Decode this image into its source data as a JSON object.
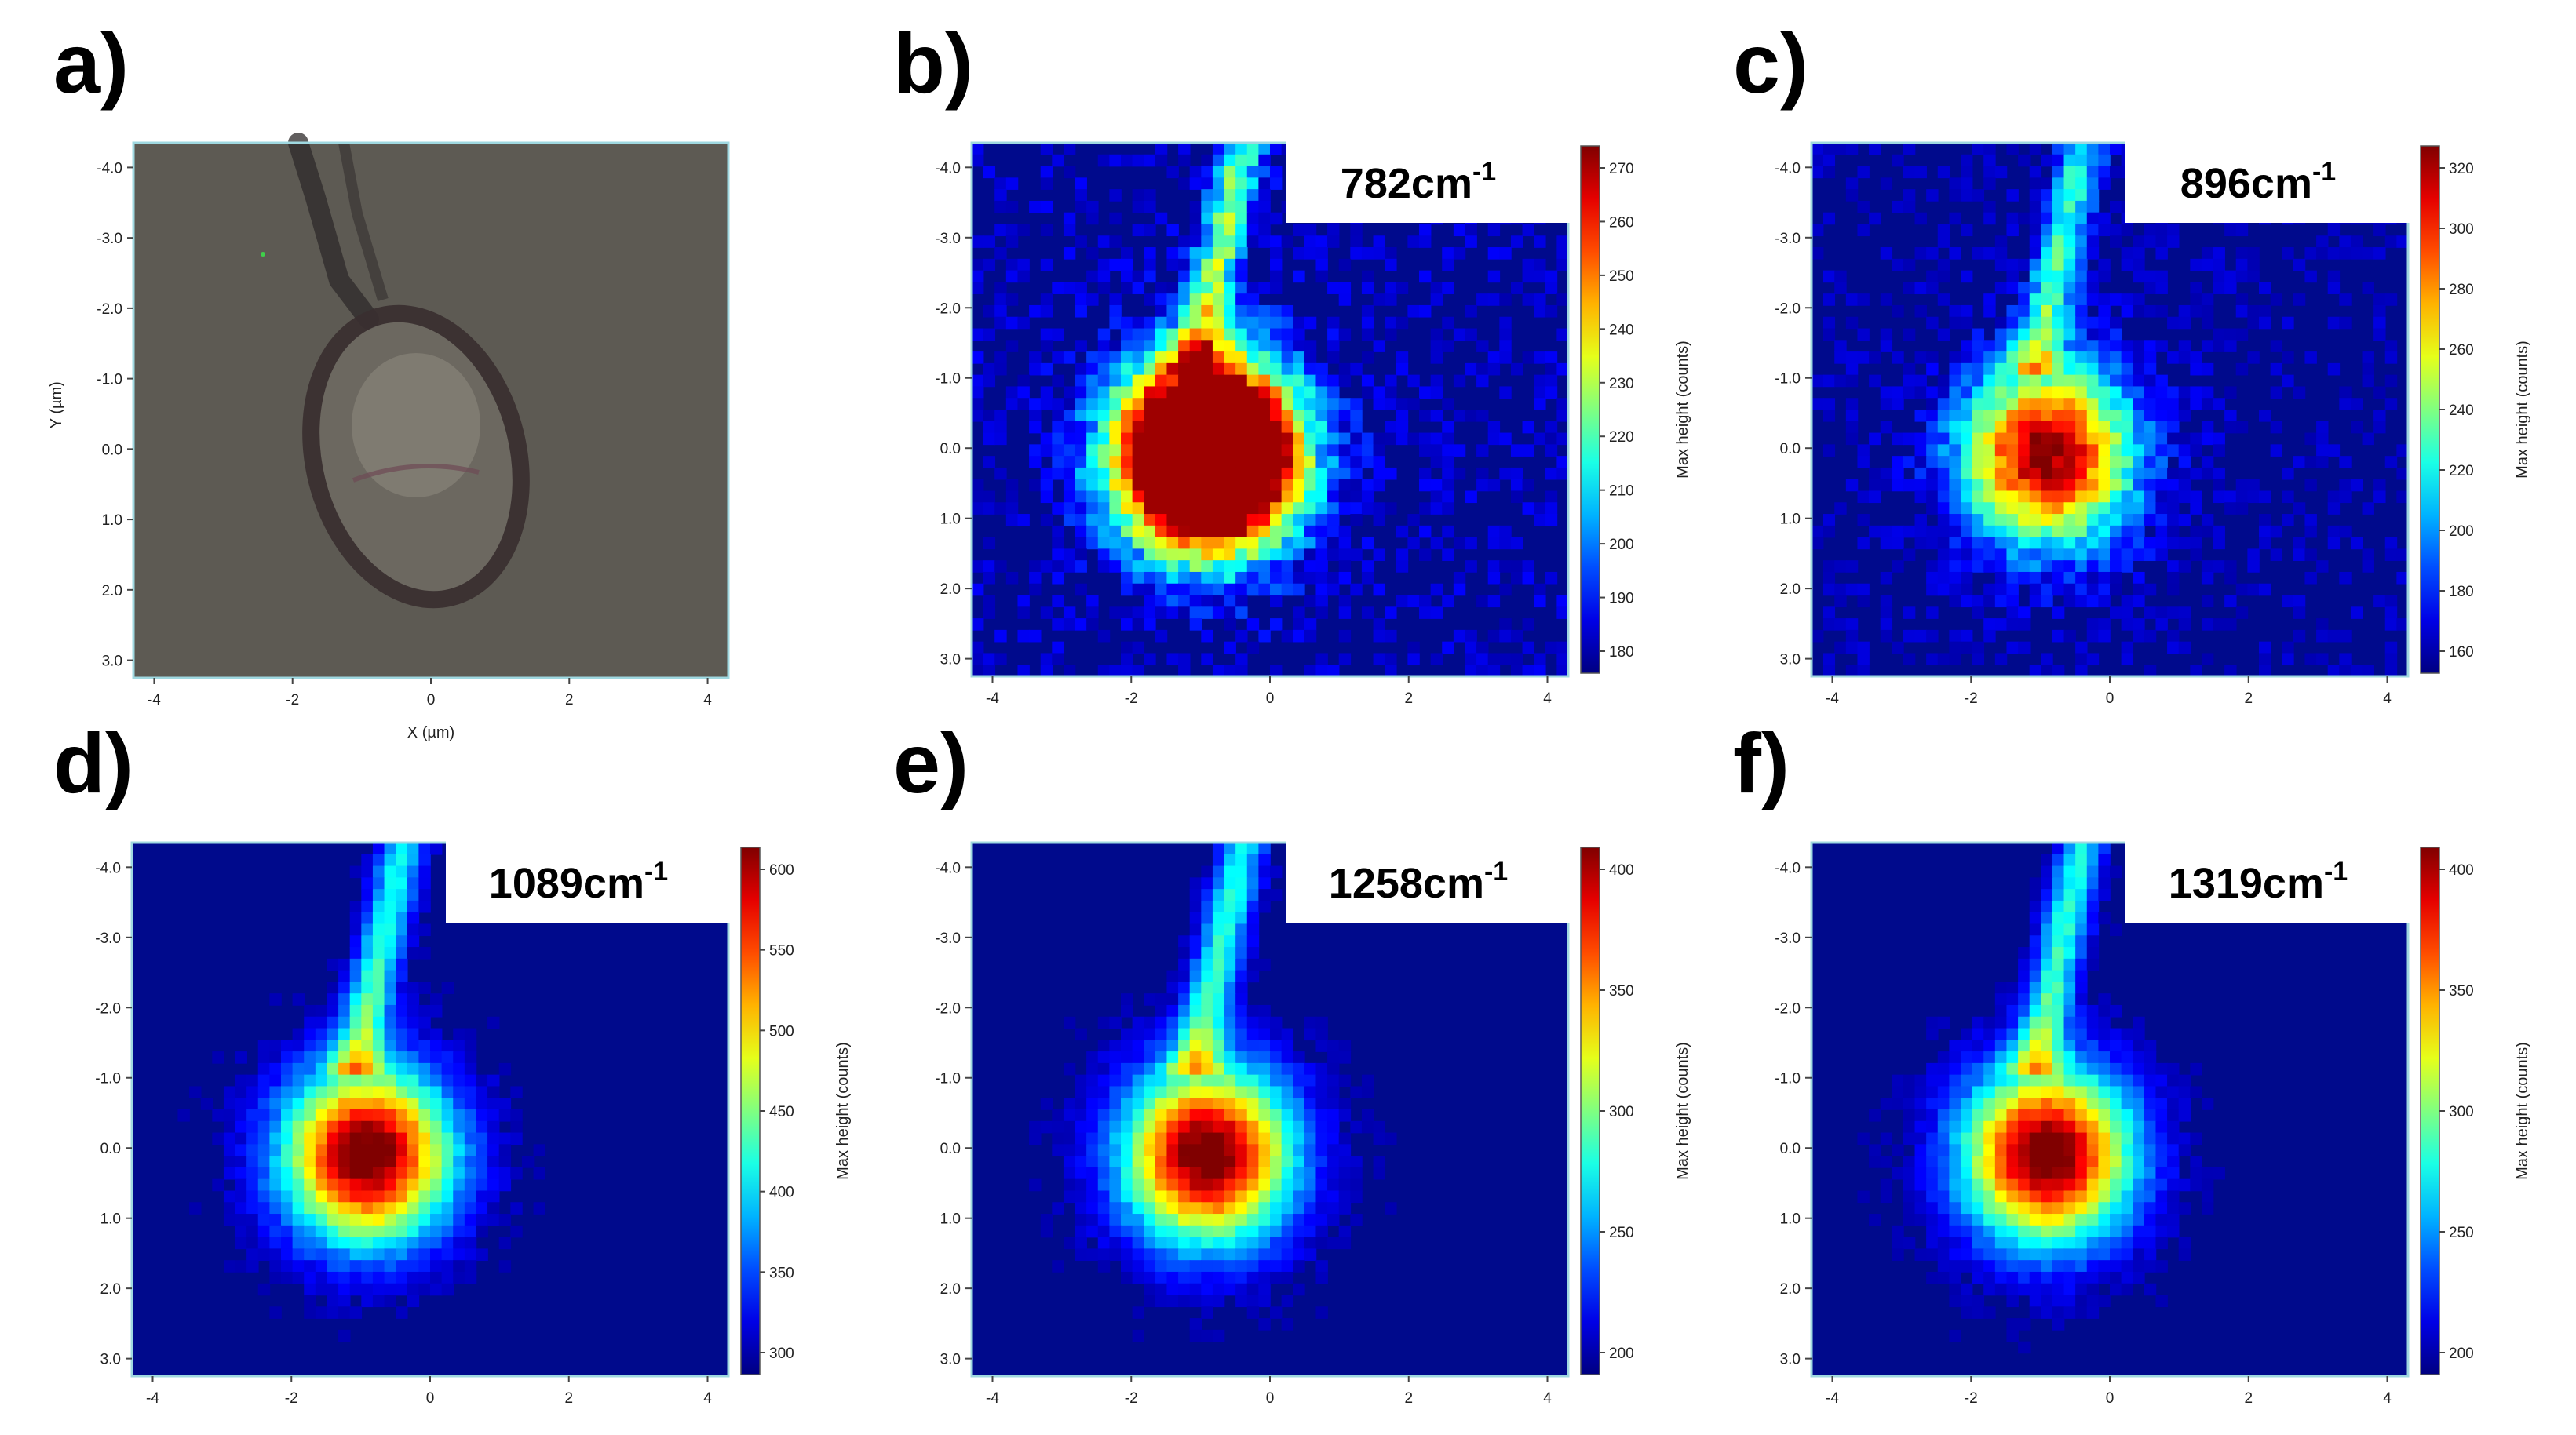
{
  "figure": {
    "panels": [
      {
        "label": "a)",
        "kind": "optical",
        "xlabel": "X (µm)",
        "ylabel": "Y (µm)"
      },
      {
        "label": "b)",
        "kind": "raman",
        "wavenumber": "782",
        "unit": "cm",
        "superscript": "-1",
        "colorbar_title": "Max height (counts)",
        "colorbar_ticks": [
          "270",
          "260",
          "250",
          "240",
          "230",
          "220",
          "210",
          "200",
          "190",
          "180"
        ],
        "saturated": true,
        "intensity": 1.9
      },
      {
        "label": "c)",
        "kind": "raman",
        "wavenumber": "896",
        "unit": "cm",
        "superscript": "-1",
        "colorbar_title": "Max height (counts)",
        "colorbar_ticks": [
          "320",
          "300",
          "280",
          "260",
          "240",
          "220",
          "200",
          "180",
          "160"
        ],
        "saturated": false,
        "intensity": 1.0
      },
      {
        "label": "d)",
        "kind": "raman",
        "wavenumber": "1089",
        "unit": "cm",
        "superscript": "-1",
        "colorbar_title": "Max height (counts)",
        "colorbar_ticks": [
          "600",
          "550",
          "500",
          "450",
          "400",
          "350",
          "300"
        ],
        "saturated": false,
        "intensity": 1.05
      },
      {
        "label": "e)",
        "kind": "raman",
        "wavenumber": "1258",
        "unit": "cm",
        "superscript": "-1",
        "colorbar_title": "Max height (counts)",
        "colorbar_ticks": [
          "400",
          "350",
          "300",
          "250",
          "200"
        ],
        "saturated": false,
        "intensity": 1.05
      },
      {
        "label": "f)",
        "kind": "raman",
        "wavenumber": "1319",
        "unit": "cm",
        "superscript": "-1",
        "colorbar_title": "Max height (counts)",
        "colorbar_ticks": [
          "400",
          "350",
          "300",
          "250",
          "200"
        ],
        "saturated": false,
        "intensity": 1.05
      }
    ],
    "x_ticks": [
      "-4",
      "-2",
      "0",
      "2",
      "4"
    ],
    "y_ticks": [
      "-4.0",
      "-3.0",
      "-2.0",
      "-1.0",
      "0.0",
      "1.0",
      "2.0",
      "3.0"
    ]
  },
  "colors": {
    "background_map": "#000a8c",
    "optical_bg": "#5d5a53",
    "frame": "#9fd8e0"
  },
  "chart_data": [
    {
      "type": "heatmap",
      "title": "782cm-1",
      "colorbar_label": "Max height (counts)",
      "colorbar_range": [
        180,
        270
      ],
      "xlim": [
        -4,
        4
      ],
      "ylim": [
        -4,
        3
      ]
    },
    {
      "type": "heatmap",
      "title": "896cm-1",
      "colorbar_label": "Max height (counts)",
      "colorbar_range": [
        150,
        330
      ],
      "xlim": [
        -4,
        4
      ],
      "ylim": [
        -4,
        3
      ]
    },
    {
      "type": "heatmap",
      "title": "1089cm-1",
      "colorbar_label": "Max height (counts)",
      "colorbar_range": [
        280,
        620
      ],
      "xlim": [
        -4,
        4
      ],
      "ylim": [
        -4,
        3
      ]
    },
    {
      "type": "heatmap",
      "title": "1258cm-1",
      "colorbar_label": "Max height (counts)",
      "colorbar_range": [
        170,
        430
      ],
      "xlim": [
        -4,
        4
      ],
      "ylim": [
        -4,
        3
      ]
    },
    {
      "type": "heatmap",
      "title": "1319cm-1",
      "colorbar_label": "Max height (counts)",
      "colorbar_range": [
        170,
        430
      ],
      "xlim": [
        -4,
        4
      ],
      "ylim": [
        -4,
        3
      ]
    }
  ]
}
